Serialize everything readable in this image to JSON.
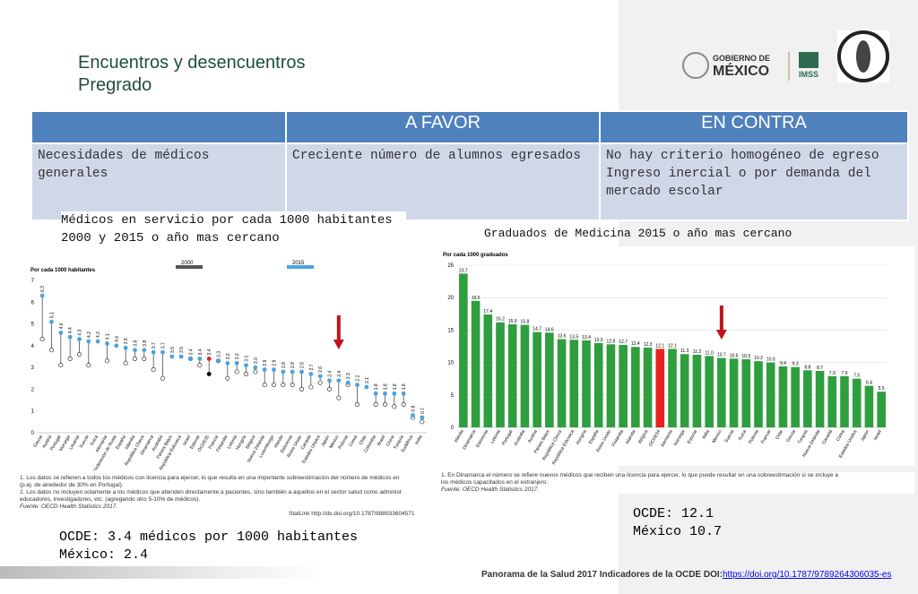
{
  "header": {
    "title": [
      "Encuentros y desencuentros",
      "Pregrado"
    ],
    "logos": [
      "GOBIERNO DE",
      "MÉXICO",
      "IMSS"
    ]
  },
  "table": {
    "headers": [
      "",
      "A FAVOR",
      "EN CONTRA"
    ],
    "rows": [
      [
        [
          "Necesidades de médicos generales"
        ],
        [
          "Creciente número de alumnos egresados"
        ],
        [
          "No hay criterio homogéneo de egreso",
          "Ingreso inercial o por demanda del mercado escolar"
        ]
      ]
    ]
  },
  "left_caption": [
    "Médicos en servicio por cada 1000 habitantes",
    "2000 y 2015 o año mas cercano"
  ],
  "right_caption": [
    "Graduados de Medicina 2015 o año mas cercano"
  ],
  "chart_data": [
    {
      "type": "lollipop",
      "ylabel": "Por cada 1000 habitantes",
      "ylim": [
        0,
        7
      ],
      "yticks": [
        0,
        1,
        2,
        3,
        4,
        5,
        6,
        7
      ],
      "highlight": "OCDE35",
      "highlight_color": "#d9262c",
      "arrow_at": "México",
      "arrow_color": "#c0141b",
      "categories": [
        "Grecia",
        "Austria",
        "Portugal",
        "Noruega",
        "Lituania",
        "Suecia",
        "Suiza",
        "Alemania",
        "Federación de Rusia",
        "España",
        "Islandia",
        "República Checa",
        "Dinamarca",
        "Australia",
        "Países Bajos",
        "República Eslovaca",
        "Israel",
        "Estonia",
        "OCDE35",
        "Francia",
        "Finlandia",
        "Letonia",
        "Hungría",
        "Bélgica",
        "Nueva Zelanda",
        "Luxemburgo",
        "Irlanda",
        "Eslovenia",
        "Reino Unido",
        "Canadá",
        "Estados Unidos",
        "Japón",
        "México",
        "Polonia",
        "Corea",
        "Chile",
        "Colombia",
        "Brasil",
        "China",
        "Turquía",
        "Sudáfrica",
        "India"
      ],
      "series": [
        {
          "name": "2000",
          "color": "#ffffff",
          "values": [
            4.3,
            3.8,
            3.1,
            3.4,
            3.6,
            3.1,
            null,
            3.3,
            null,
            3.2,
            3.4,
            3.4,
            2.9,
            2.5,
            null,
            null,
            3.4,
            3.1,
            2.7,
            3.3,
            2.5,
            2.8,
            2.7,
            2.8,
            2.2,
            2.2,
            2.2,
            2.2,
            2.0,
            2.1,
            2.3,
            2.0,
            1.6,
            2.2,
            1.3,
            null,
            1.3,
            1.3,
            1.2,
            1.3,
            0.7,
            0.5
          ]
        },
        {
          "name": "2015",
          "color": "#4aa3df",
          "values": [
            6.3,
            5.1,
            4.6,
            4.4,
            4.3,
            4.2,
            4.2,
            4.1,
            4.0,
            3.9,
            3.8,
            3.8,
            3.7,
            3.7,
            3.5,
            3.5,
            3.4,
            3.4,
            3.4,
            3.3,
            3.2,
            3.2,
            3.1,
            3.0,
            2.9,
            2.9,
            2.8,
            2.8,
            2.8,
            2.7,
            2.6,
            2.4,
            2.4,
            2.3,
            2.2,
            2.1,
            1.8,
            1.8,
            1.8,
            1.8,
            0.8,
            0.7
          ],
          "value_labels": [
            "6.3",
            "5.1",
            "4.6",
            "4.4",
            "4.3",
            "4.2",
            "4.2",
            "4.1",
            "4.0",
            "3.9",
            "3.8",
            "3.8",
            "3.7",
            "3.7",
            "3.5",
            "3.5",
            "3.4",
            "3.4",
            "3.4",
            "3.3",
            "3.2",
            "3.2",
            "3.1",
            "3.0",
            "2.9",
            "2.9",
            "2.8",
            "2.8",
            "2.8",
            "2.7",
            "2.6",
            "2.4",
            "2.4",
            "2.3",
            "2.2",
            "2.1",
            "1.8",
            "1.8",
            "1.8",
            "1.8",
            "0.8",
            "0.7"
          ]
        }
      ]
    },
    {
      "type": "bar",
      "ylabel": "Por cada 1000 graduados",
      "ylim": [
        0,
        25
      ],
      "yticks": [
        0,
        5,
        10,
        15,
        20,
        25
      ],
      "grid": true,
      "color": "#2e9e3e",
      "highlight": "OCDE34",
      "highlight_color": "#e8231f",
      "arrow_at": "México",
      "arrow_color": "#c0141b",
      "categories": [
        "Irlanda",
        "Dinamarca",
        "Eslovenia",
        "Letonia",
        "Portugal",
        "Australia",
        "Austria",
        "Países Bajos",
        "República Checa",
        "República Eslovaca",
        "Hungría",
        "España",
        "Reino Unido",
        "Finlandia",
        "Islandia",
        "Bélgica",
        "OCDE34",
        "Alemania",
        "Noruega",
        "Estonia",
        "Italia",
        "México",
        "Suecia",
        "Suiza",
        "Polonia",
        "Francia",
        "Chile",
        "Grecia",
        "Turquía",
        "Nueva Zelanda",
        "Canadá",
        "Corea",
        "Estados Unidos",
        "Japón",
        "Israel"
      ],
      "values": [
        23.7,
        19.5,
        17.4,
        16.2,
        15.9,
        15.8,
        14.7,
        14.6,
        13.6,
        13.5,
        13.4,
        13.0,
        12.8,
        12.7,
        12.4,
        12.3,
        12.1,
        12.1,
        11.3,
        11.2,
        11.0,
        10.7,
        10.6,
        10.5,
        10.2,
        10.0,
        9.4,
        9.3,
        8.8,
        8.7,
        7.9,
        7.9,
        7.5,
        6.4,
        5.5
      ],
      "value_labels": [
        "23.7",
        "19.5",
        "17.4",
        "16.2",
        "15.9",
        "15.8",
        "14.7",
        "14.6",
        "13.6",
        "13.5",
        "13.4",
        "13.0",
        "12.8",
        "12.7",
        "12.4",
        "12.3",
        "12.1",
        "12.1",
        "11.3",
        "11.2",
        "11.0",
        "10.7",
        "10.6",
        "10.5",
        "10.2",
        "10.0",
        "9.4",
        "9.3",
        "8.8",
        "8.7",
        "7.9",
        "7.9",
        "7.5",
        "6.4",
        "5.5"
      ]
    }
  ],
  "left_notes": [
    "1. Los datos se refieren a todos los médicos con licencia para ejercer, lo que resulta en una importante sobreestimación del número de médicos en",
    "(p.ej. de alrededor de 30% en Portugal).",
    "2. Los datos no incluyen solamente a los médicos que atienden directamente a pacientes, sino también a aquellos en el sector salud como administ",
    "educadores, investigadores, etc. (agregando otro 5-10% de médicos).",
    "Fuente: OECD Health Statistics 2017.",
    "StatLink http://dx.doi.org/10.1787/888933604571"
  ],
  "right_notes": [
    "1. En Dinamarca el número se refiere nuevos médicos que reciben una licencia para ejercer, lo que puede resultar en una sobreestimación si se incluye a",
    "los médicos capacitados en el extranjero.",
    "Fuente: OECD Health Statistics 2017."
  ],
  "left_summary": [
    "OCDE: 3.4 médicos por 1000 habitantes",
    "México: 2.4"
  ],
  "right_summary": [
    "OCDE: 12.1",
    "México 10.7"
  ],
  "footer": {
    "text": "Panorama de la Salud 2017 Indicadores de la OCDE DOI:",
    "link": "https://doi.org/10.1787/9789264306035-es"
  }
}
